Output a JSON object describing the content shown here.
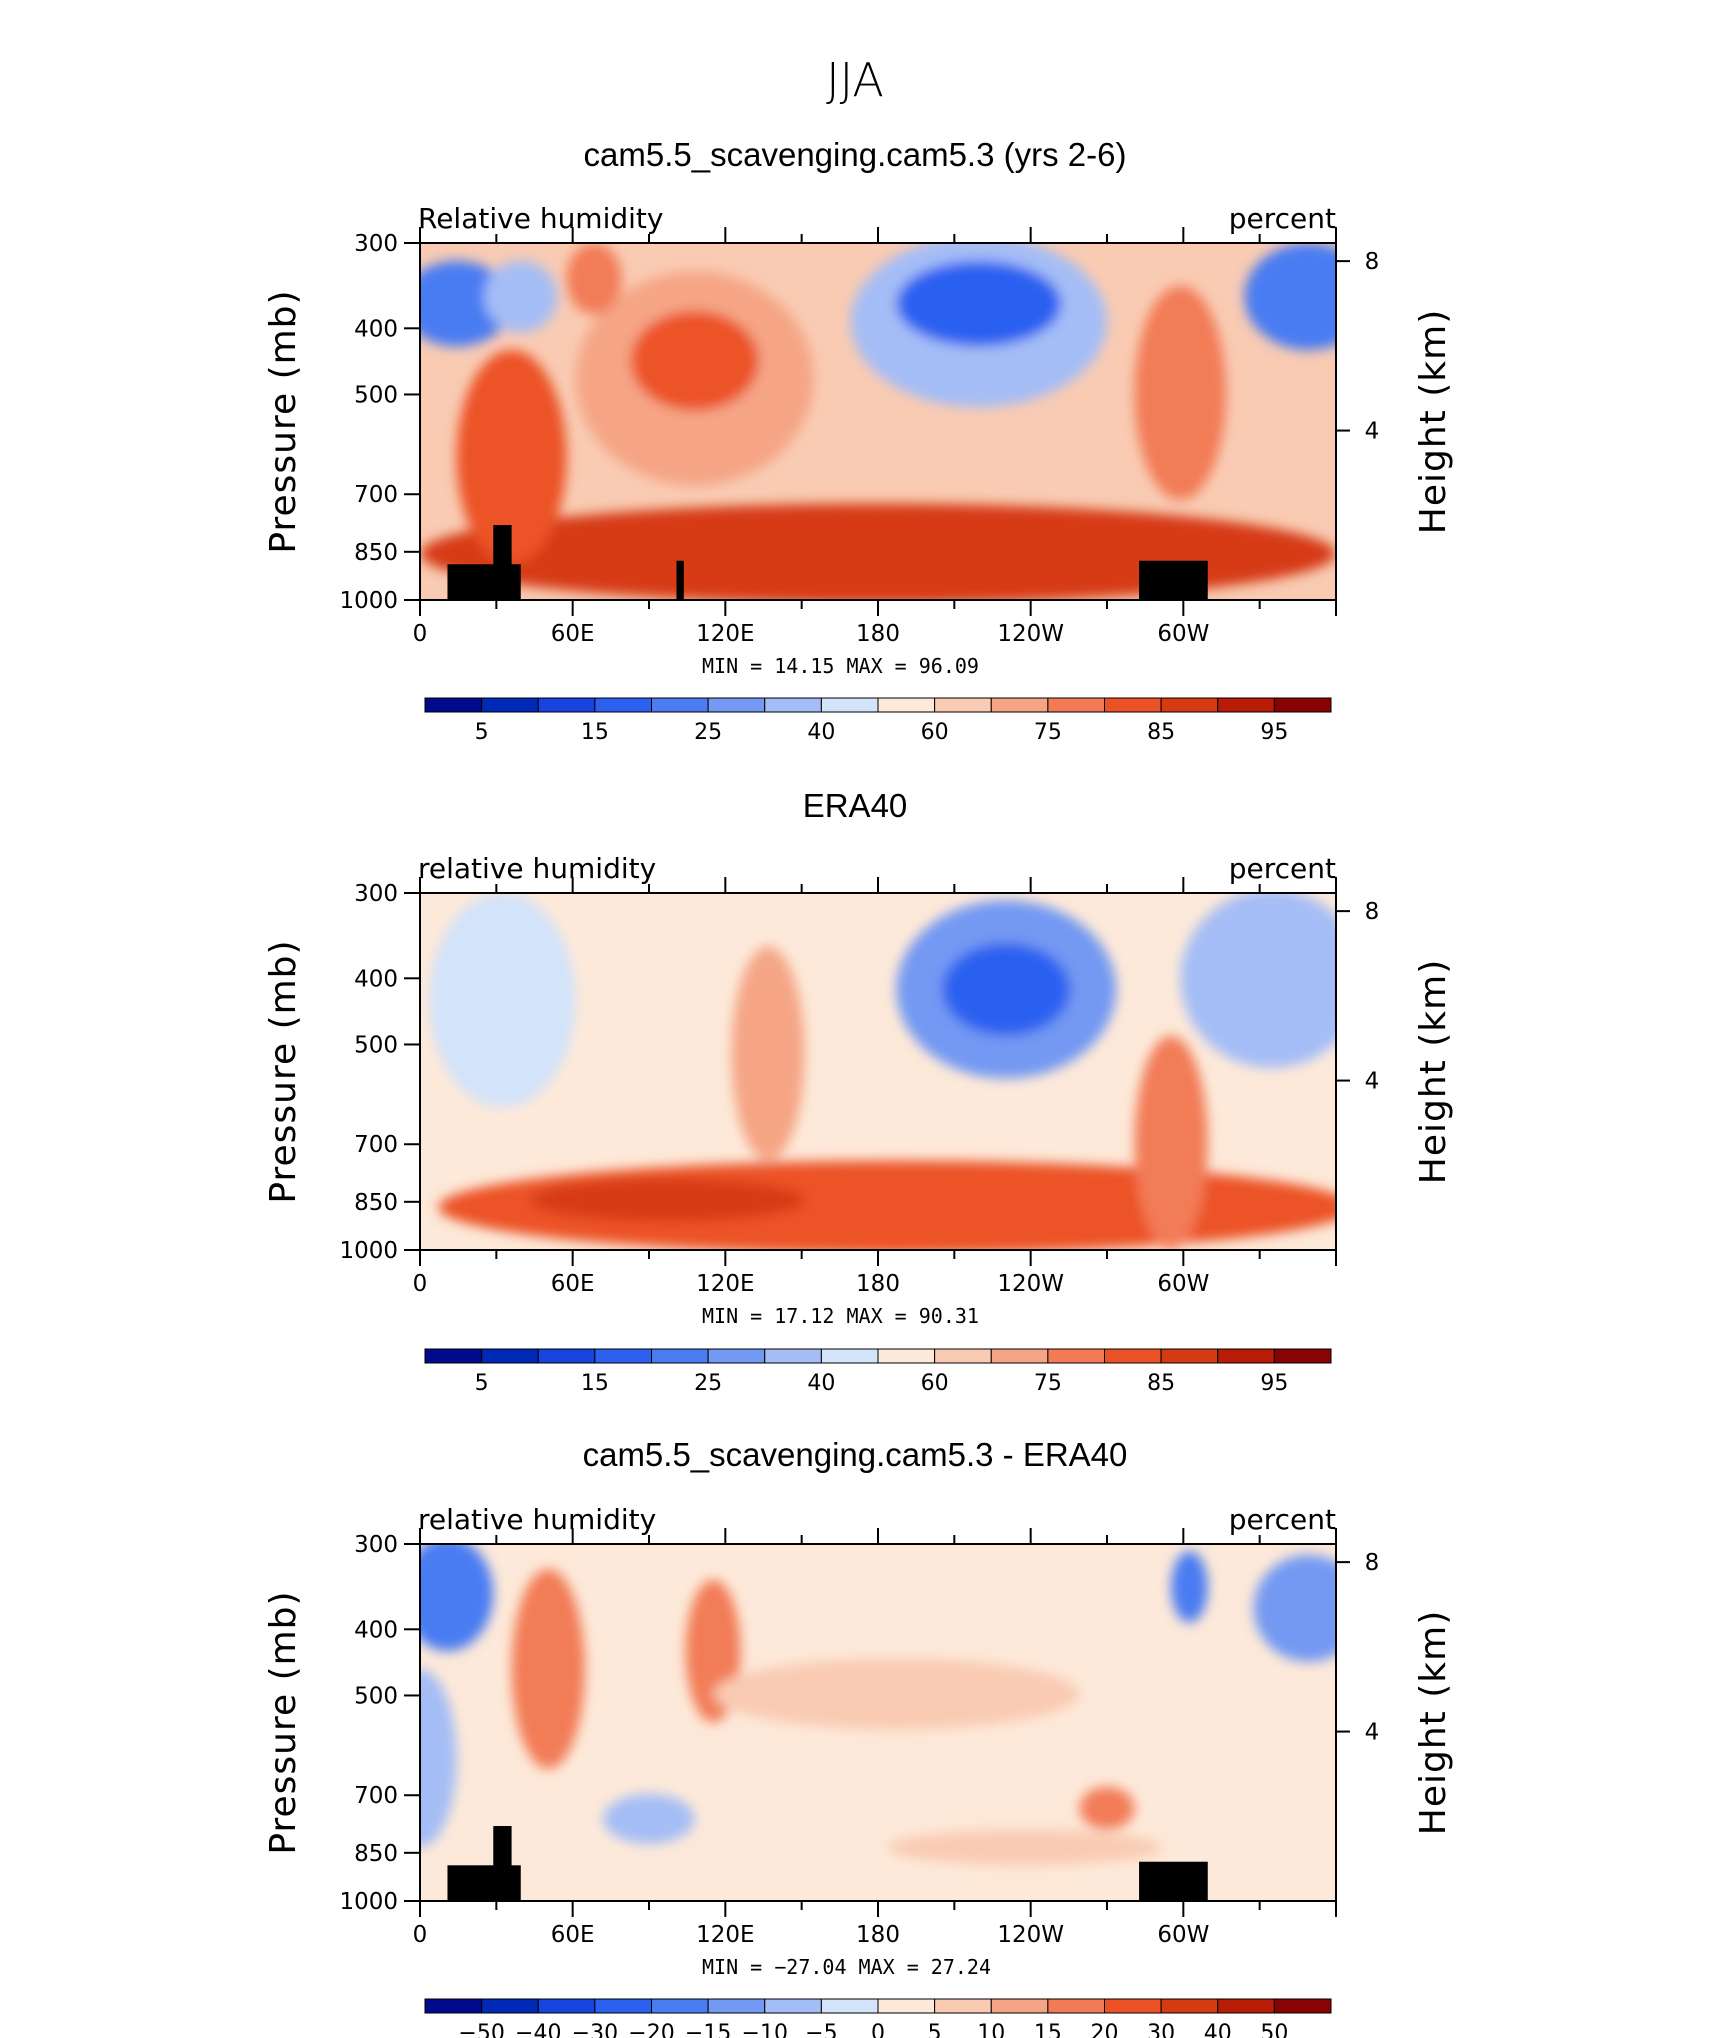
{
  "figure_title": "JJA",
  "colors": {
    "rh_scale": [
      "#000a8c",
      "#0029b8",
      "#1744dc",
      "#2c60f0",
      "#4a7cf2",
      "#7399f3",
      "#a4bdf6",
      "#d2e3fa",
      "#fde9d9",
      "#f9cbb3",
      "#f5a585",
      "#f27b56",
      "#ec5226",
      "#d63a12",
      "#b81c07",
      "#880404"
    ],
    "diff_scale": [
      "#000a8c",
      "#0029b8",
      "#1744dc",
      "#2c60f0",
      "#4a7cf2",
      "#7399f3",
      "#a4bdf6",
      "#d2e3fa",
      "#fde9d9",
      "#f9cbb3",
      "#f5a585",
      "#f27b56",
      "#ec5226",
      "#d63a12",
      "#b81c07",
      "#880404"
    ],
    "land": "#000000"
  },
  "chart_data": [
    {
      "type": "heatmap",
      "title": "cam5.5_scavenging.cam5.3 (yrs 2-6)",
      "left_string": "Relative humidity",
      "right_string": "percent",
      "ylabel": "Pressure (mb)",
      "y2label": "Height (km)",
      "x_ticks": [
        "0",
        "60E",
        "120E",
        "180",
        "120W",
        "60W"
      ],
      "y_ticks": [
        "300",
        "400",
        "500",
        "700",
        "850",
        "1000"
      ],
      "y2_ticks": [
        "8",
        "4"
      ],
      "xlim": [
        0,
        360
      ],
      "ylim": [
        1000,
        300
      ],
      "y_scale": "log",
      "stats": {
        "min_label": "MIN =",
        "min": "14.15",
        "max_label": "MAX =",
        "max": "96.09"
      },
      "colorbar_labels": [
        "5",
        "15",
        "25",
        "40",
        "60",
        "75",
        "85",
        "95"
      ],
      "colorbar_levels": 16
    },
    {
      "type": "heatmap",
      "title": "ERA40",
      "left_string": "relative humidity",
      "right_string": "percent",
      "ylabel": "Pressure (mb)",
      "y2label": "Height (km)",
      "x_ticks": [
        "0",
        "60E",
        "120E",
        "180",
        "120W",
        "60W"
      ],
      "y_ticks": [
        "300",
        "400",
        "500",
        "700",
        "850",
        "1000"
      ],
      "y2_ticks": [
        "8",
        "4"
      ],
      "xlim": [
        0,
        360
      ],
      "ylim": [
        1000,
        300
      ],
      "y_scale": "log",
      "stats": {
        "min_label": "MIN =",
        "min": "17.12",
        "max_label": "MAX =",
        "max": "90.31"
      },
      "colorbar_labels": [
        "5",
        "15",
        "25",
        "40",
        "60",
        "75",
        "85",
        "95"
      ],
      "colorbar_levels": 16
    },
    {
      "type": "heatmap",
      "title": "cam5.5_scavenging.cam5.3 - ERA40",
      "left_string": "relative humidity",
      "right_string": "percent",
      "ylabel": "Pressure (mb)",
      "y2label": "Height (km)",
      "x_ticks": [
        "0",
        "60E",
        "120E",
        "180",
        "120W",
        "60W"
      ],
      "y_ticks": [
        "300",
        "400",
        "500",
        "700",
        "850",
        "1000"
      ],
      "y2_ticks": [
        "8",
        "4"
      ],
      "xlim": [
        0,
        360
      ],
      "ylim": [
        1000,
        300
      ],
      "y_scale": "log",
      "stats": {
        "min_label": "MIN =",
        "min": "−27.04",
        "max_label": "MAX =",
        "max": "27.24"
      },
      "colorbar_labels": [
        "−50",
        "−40",
        "−30",
        "−20",
        "−15",
        "−10",
        "−5",
        "0",
        "5",
        "10",
        "15",
        "20",
        "30",
        "40",
        "50"
      ],
      "colorbar_levels": 16
    }
  ]
}
